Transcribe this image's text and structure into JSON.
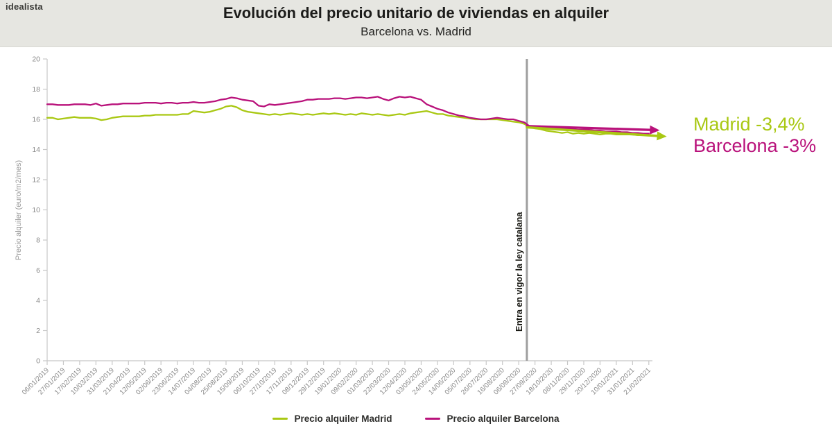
{
  "header": {
    "logo": "idealista",
    "title": "Evolución del precio unitario de viviendas en alquiler",
    "subtitle": "Barcelona vs. Madrid"
  },
  "annotation": {
    "madrid": "Madrid -3,4%",
    "barcelona": "Barcelona -3%"
  },
  "event": {
    "label": "Entra en vigor la ley catalana",
    "week": 88.5
  },
  "legend": [
    {
      "label": "Precio alquiler Madrid",
      "color": "#a9c813"
    },
    {
      "label": "Precio alquiler Barcelona",
      "color": "#b9127b"
    }
  ],
  "colors": {
    "madrid": "#a9c813",
    "barcelona": "#b9127b",
    "axis": "#c8c8c8",
    "tick_text": "#8a8a8a",
    "event_line": "#9e9e9e",
    "header_bg": "#e6e6e1",
    "title_text": "#1c1c1a"
  },
  "chart_data": {
    "type": "line",
    "title": "Evolución del precio unitario de viviendas en alquiler",
    "subtitle": "Barcelona vs. Madrid",
    "xlabel": "",
    "ylabel": "Precio alquiler (euro/m2/mes)",
    "ylim": [
      0,
      20
    ],
    "yticks": [
      0,
      2,
      4,
      6,
      8,
      10,
      12,
      14,
      16,
      18,
      20
    ],
    "grid": false,
    "legend_position": "bottom",
    "x_tick_every_weeks": 3,
    "x_tick_labels": [
      "06/01/2019",
      "27/01/2019",
      "17/02/2019",
      "10/03/2019",
      "31/03/2019",
      "21/04/2019",
      "12/05/2019",
      "02/06/2019",
      "23/06/2019",
      "14/07/2019",
      "04/08/2019",
      "25/08/2019",
      "15/09/2019",
      "06/10/2019",
      "27/10/2019",
      "17/11/2019",
      "08/12/2019",
      "29/12/2019",
      "19/01/2020",
      "09/02/2020",
      "01/03/2020",
      "22/03/2020",
      "12/04/2020",
      "03/05/2020",
      "24/05/2020",
      "14/06/2020",
      "05/07/2020",
      "26/07/2020",
      "16/08/2020",
      "06/09/2020",
      "27/09/2020",
      "18/10/2020",
      "08/11/2020",
      "29/11/2020",
      "20/12/2020",
      "10/01/2021",
      "31/01/2021",
      "21/02/2021"
    ],
    "event_line": {
      "label": "Entra en vigor la ley catalana",
      "week": 88.5,
      "date": "22/09/2020"
    },
    "series": [
      {
        "name": "Precio alquiler Madrid",
        "color": "#a9c813",
        "values": [
          16.1,
          16.1,
          16.0,
          16.05,
          16.1,
          16.15,
          16.1,
          16.1,
          16.1,
          16.05,
          15.95,
          16.0,
          16.1,
          16.15,
          16.2,
          16.2,
          16.2,
          16.2,
          16.25,
          16.25,
          16.3,
          16.3,
          16.3,
          16.3,
          16.3,
          16.35,
          16.35,
          16.55,
          16.5,
          16.45,
          16.5,
          16.6,
          16.7,
          16.85,
          16.9,
          16.8,
          16.6,
          16.5,
          16.45,
          16.4,
          16.35,
          16.3,
          16.35,
          16.3,
          16.35,
          16.4,
          16.35,
          16.3,
          16.35,
          16.3,
          16.35,
          16.4,
          16.35,
          16.4,
          16.35,
          16.3,
          16.35,
          16.3,
          16.4,
          16.35,
          16.3,
          16.35,
          16.3,
          16.25,
          16.3,
          16.35,
          16.3,
          16.4,
          16.45,
          16.5,
          16.55,
          16.45,
          16.35,
          16.35,
          16.25,
          16.2,
          16.15,
          16.1,
          16.05,
          16.0,
          16.0,
          16.0,
          16.0,
          16.0,
          15.95,
          15.9,
          15.85,
          15.8,
          15.7,
          15.5,
          15.4,
          15.35,
          15.25,
          15.2,
          15.15,
          15.1,
          15.15,
          15.05,
          15.1,
          15.05,
          15.1,
          15.05,
          15.0,
          15.05,
          15.05,
          15.0,
          15.0,
          15.0,
          15.0,
          14.95,
          14.95,
          14.95
        ]
      },
      {
        "name": "Precio alquiler Barcelona",
        "color": "#b9127b",
        "values": [
          17.0,
          17.0,
          16.95,
          16.95,
          16.95,
          17.0,
          17.0,
          17.0,
          16.95,
          17.05,
          16.9,
          16.95,
          17.0,
          17.0,
          17.05,
          17.05,
          17.05,
          17.05,
          17.1,
          17.1,
          17.1,
          17.05,
          17.1,
          17.1,
          17.05,
          17.1,
          17.1,
          17.15,
          17.1,
          17.1,
          17.15,
          17.2,
          17.3,
          17.35,
          17.45,
          17.4,
          17.3,
          17.25,
          17.2,
          16.9,
          16.85,
          17.0,
          16.95,
          17.0,
          17.05,
          17.1,
          17.15,
          17.2,
          17.3,
          17.3,
          17.35,
          17.35,
          17.35,
          17.4,
          17.4,
          17.35,
          17.4,
          17.45,
          17.45,
          17.4,
          17.45,
          17.5,
          17.35,
          17.25,
          17.4,
          17.5,
          17.45,
          17.5,
          17.4,
          17.3,
          17.0,
          16.85,
          16.7,
          16.6,
          16.45,
          16.35,
          16.25,
          16.2,
          16.1,
          16.05,
          16.0,
          16.0,
          16.05,
          16.1,
          16.05,
          16.0,
          16.0,
          15.9,
          15.8,
          15.55,
          15.5,
          15.5,
          15.45,
          15.45,
          15.4,
          15.4,
          15.35,
          15.35,
          15.3,
          15.3,
          15.3,
          15.25,
          15.25,
          15.2,
          15.2,
          15.2,
          15.15,
          15.15,
          15.1,
          15.1,
          15.05,
          15.05
        ]
      }
    ],
    "trend_arrows": [
      {
        "series": "Precio alquiler Barcelona",
        "color": "#b9127b",
        "label": "Barcelona -3%",
        "from": {
          "week": 88.5,
          "value": 15.55
        },
        "to": {
          "week": 113.0,
          "value": 15.28
        }
      },
      {
        "series": "Precio alquiler Madrid",
        "color": "#a9c813",
        "label": "Madrid -3,4%",
        "from": {
          "week": 88.5,
          "value": 15.47
        },
        "to": {
          "week": 114.3,
          "value": 14.86
        }
      }
    ]
  }
}
